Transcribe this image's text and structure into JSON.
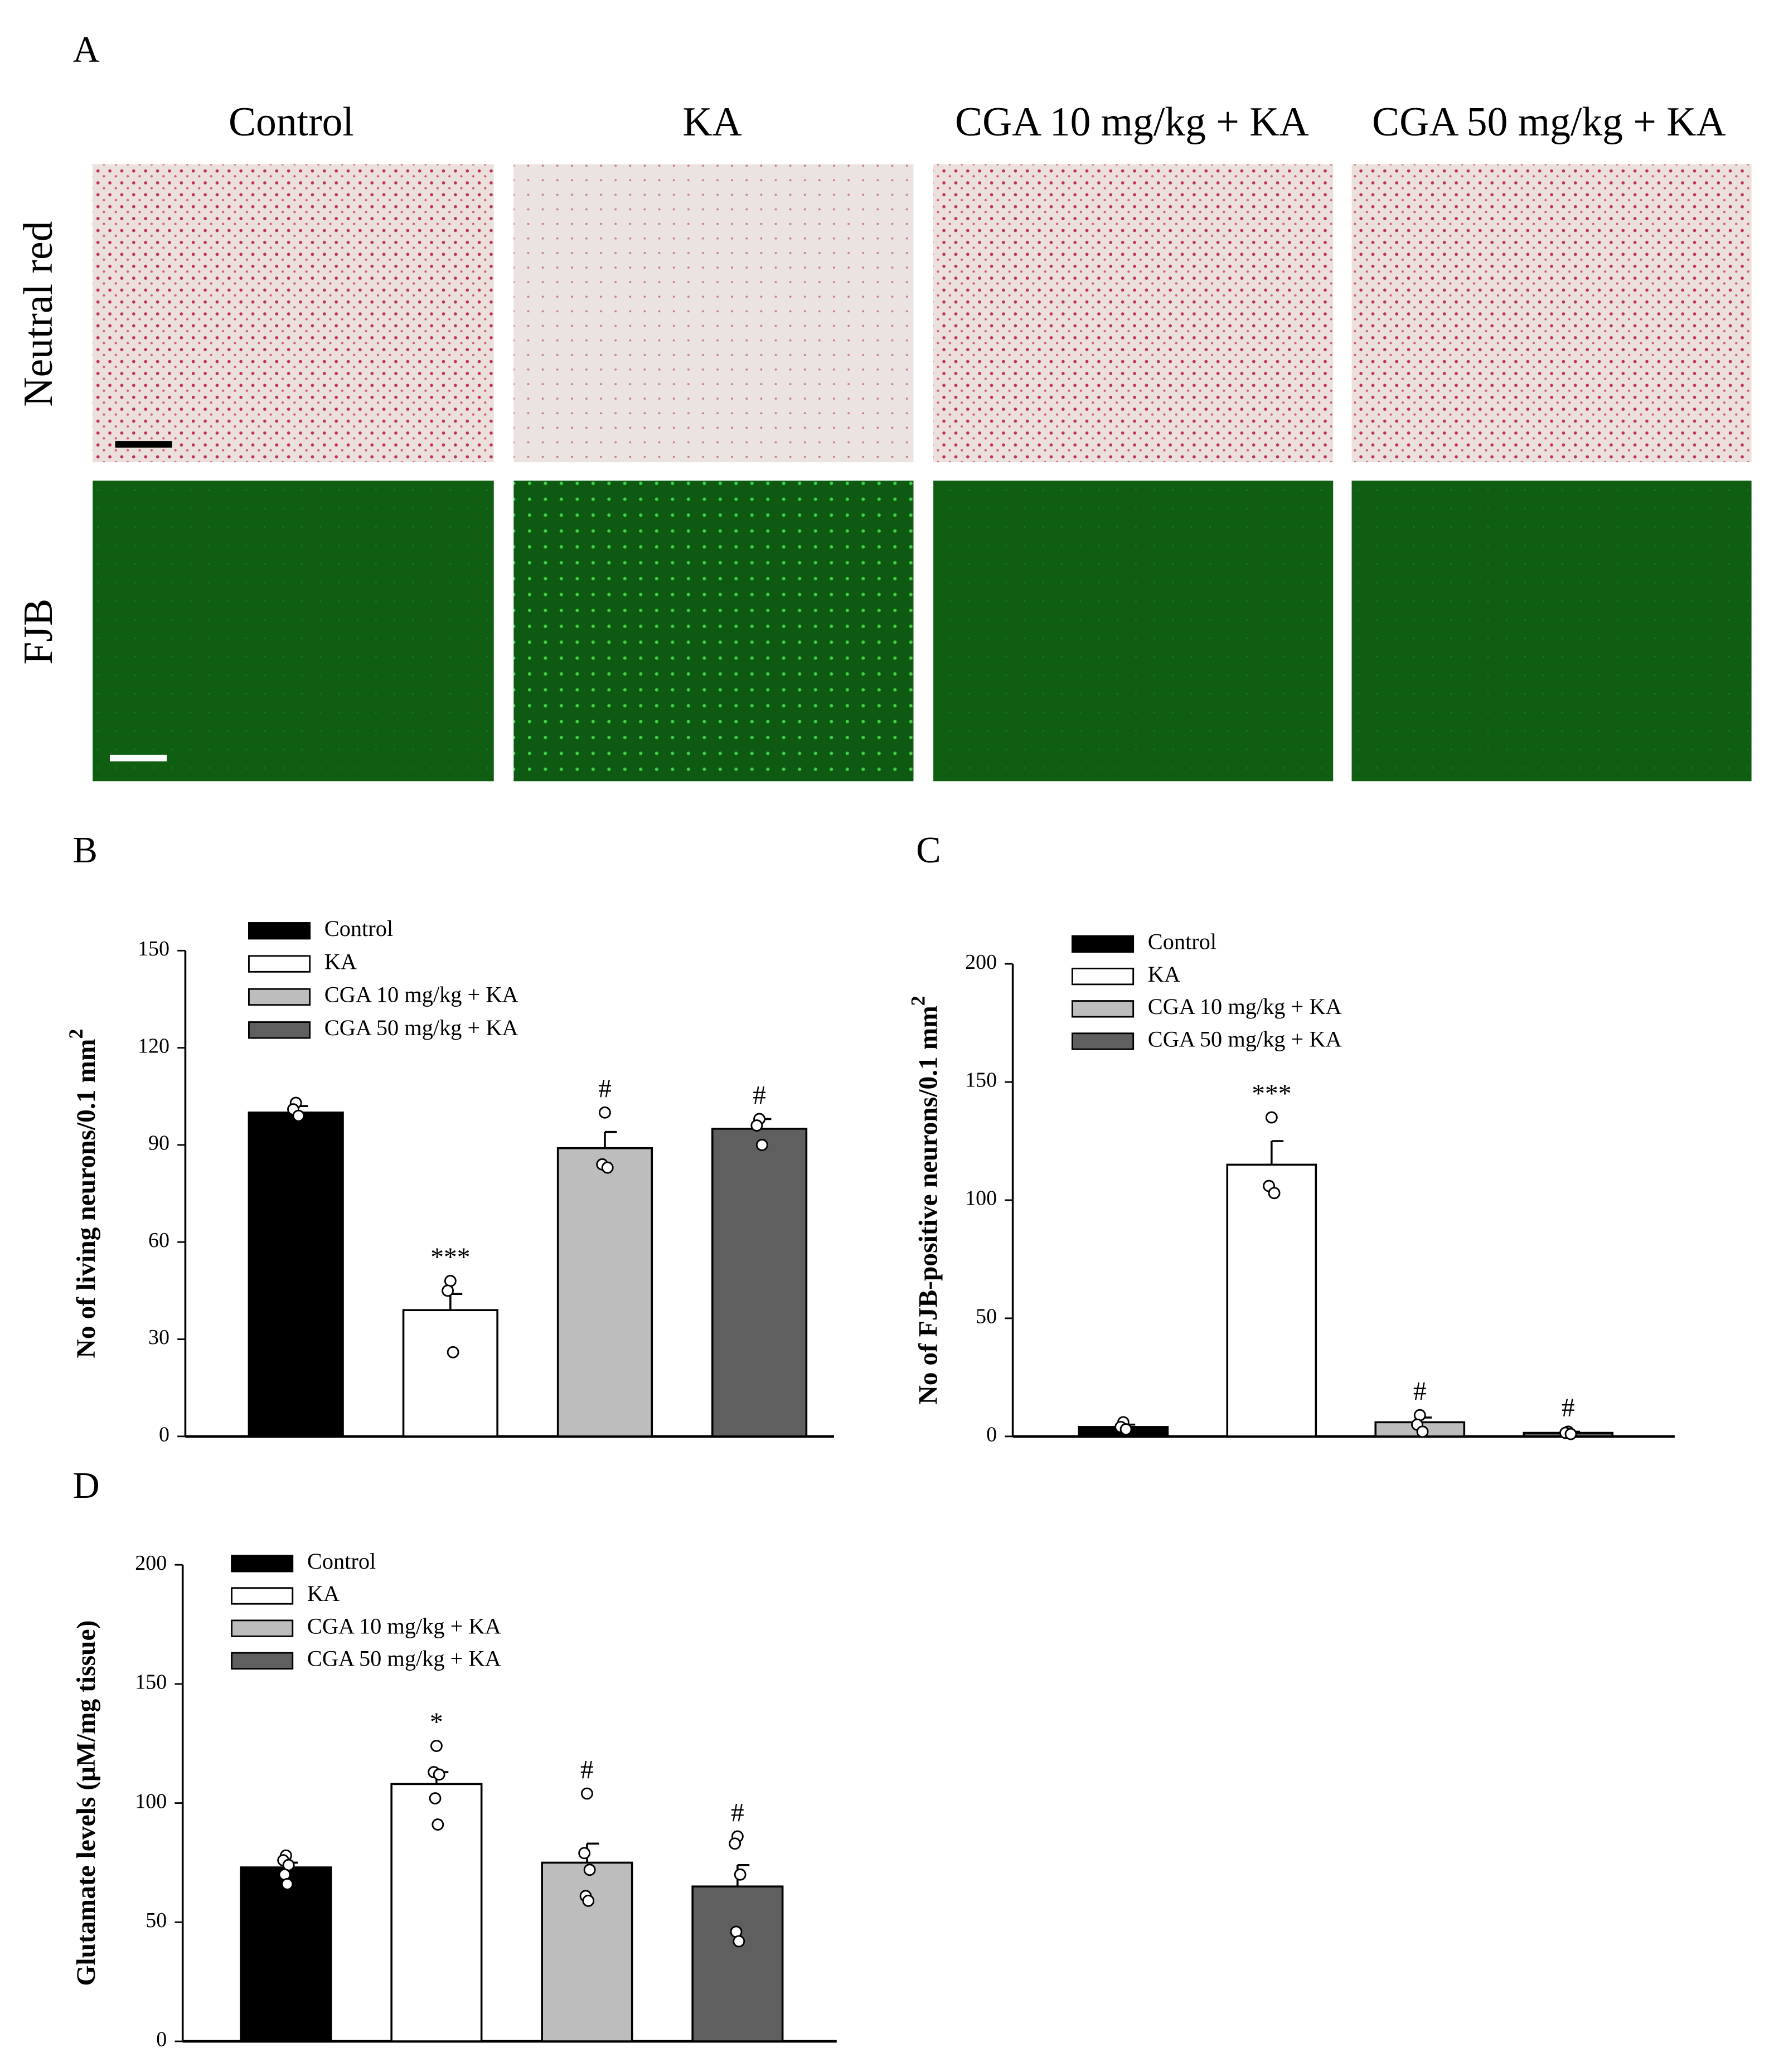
{
  "panel_a": {
    "label": "A",
    "columns": [
      "Control",
      "KA",
      "CGA 10 mg/kg + KA",
      "CGA 50 mg/kg + KA"
    ],
    "rows": [
      "Neutral red",
      "FJB"
    ]
  },
  "chart_data": [
    {
      "type": "bar",
      "panel_label": "B",
      "ylabel": "No of living neurons/0.1 mm",
      "ylabel_sup": "2",
      "ylim": [
        0,
        150
      ],
      "yticks": [
        0,
        30,
        60,
        90,
        120,
        150
      ],
      "series": [
        {
          "name": "Control",
          "color": "#000000",
          "values": [
            100
          ],
          "errors": [
            2
          ],
          "points": [
            103,
            101,
            99
          ]
        },
        {
          "name": "KA",
          "color": "#ffffff",
          "values": [
            39
          ],
          "errors": [
            5
          ],
          "points": [
            48,
            45,
            26
          ],
          "annotation": "***"
        },
        {
          "name": "CGA 10 mg/kg + KA",
          "color": "#bdbdbd",
          "values": [
            89
          ],
          "errors": [
            5
          ],
          "points": [
            100,
            84,
            83
          ],
          "annotation": "#"
        },
        {
          "name": "CGA 50 mg/kg + KA",
          "color": "#5f5f5f",
          "values": [
            95
          ],
          "errors": [
            3
          ],
          "points": [
            98,
            96,
            90
          ],
          "annotation": "#"
        }
      ]
    },
    {
      "type": "bar",
      "panel_label": "C",
      "ylabel": "No of FJB-positive neurons/0.1 mm",
      "ylabel_sup": "2",
      "ylim": [
        0,
        200
      ],
      "yticks": [
        0,
        50,
        100,
        150,
        200
      ],
      "series": [
        {
          "name": "Control",
          "color": "#000000",
          "values": [
            4
          ],
          "errors": [
            1
          ],
          "points": [
            6,
            4,
            3
          ]
        },
        {
          "name": "KA",
          "color": "#ffffff",
          "values": [
            115
          ],
          "errors": [
            10
          ],
          "points": [
            135,
            106,
            103
          ],
          "annotation": "***"
        },
        {
          "name": "CGA 10 mg/kg + KA",
          "color": "#bdbdbd",
          "values": [
            6
          ],
          "errors": [
            2
          ],
          "points": [
            9,
            5,
            2
          ],
          "annotation": "#"
        },
        {
          "name": "CGA 50 mg/kg + KA",
          "color": "#5f5f5f",
          "values": [
            1.5
          ],
          "errors": [
            0.5
          ],
          "points": [
            2,
            1.5,
            1
          ],
          "annotation": "#"
        }
      ]
    },
    {
      "type": "bar",
      "panel_label": "D",
      "ylabel": "Glutamate levels (μM/mg tissue)",
      "ylim": [
        0,
        200
      ],
      "yticks": [
        0,
        50,
        100,
        150,
        200
      ],
      "series": [
        {
          "name": "Control",
          "color": "#000000",
          "values": [
            73
          ],
          "errors": [
            2
          ],
          "points": [
            78,
            76,
            74,
            70,
            66
          ]
        },
        {
          "name": "KA",
          "color": "#ffffff",
          "values": [
            108
          ],
          "errors": [
            5
          ],
          "points": [
            124,
            113,
            112,
            102,
            91
          ],
          "annotation": "*"
        },
        {
          "name": "CGA 10 mg/kg + KA",
          "color": "#bdbdbd",
          "values": [
            75
          ],
          "errors": [
            8
          ],
          "points": [
            104,
            79,
            72,
            61,
            59
          ],
          "annotation": "#"
        },
        {
          "name": "CGA 50 mg/kg + KA",
          "color": "#5f5f5f",
          "values": [
            65
          ],
          "errors": [
            9
          ],
          "points": [
            86,
            83,
            70,
            46,
            42
          ],
          "annotation": "#"
        }
      ]
    }
  ]
}
